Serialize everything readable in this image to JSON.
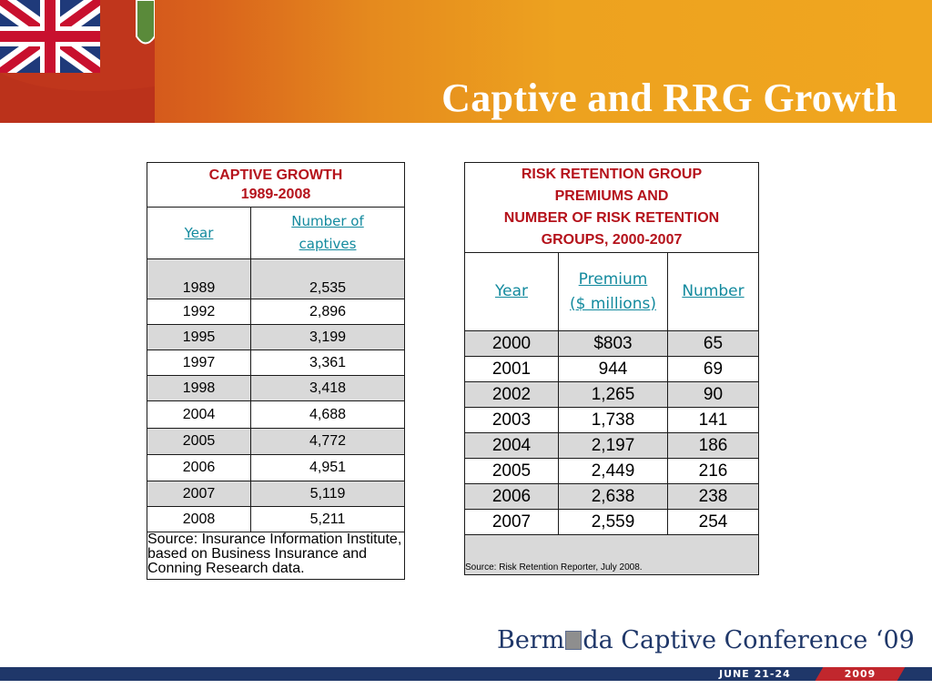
{
  "slide": {
    "title": "Captive and RRG Growth"
  },
  "captive_table": {
    "heading_line1": "CAPTIVE GROWTH",
    "heading_line2": "1989-2008",
    "col_year": "Year",
    "col_number_line1": "Number of",
    "col_number_line2": "captives",
    "rows": [
      {
        "year": "1989",
        "count": "2,535"
      },
      {
        "year": "1992",
        "count": "2,896"
      },
      {
        "year": "1995",
        "count": "3,199"
      },
      {
        "year": "1997",
        "count": "3,361"
      },
      {
        "year": "1998",
        "count": "3,418"
      },
      {
        "year": "2004",
        "count": "4,688"
      },
      {
        "year": "2005",
        "count": "4,772"
      },
      {
        "year": "2006",
        "count": "4,951"
      },
      {
        "year": "2007",
        "count": "5,119"
      },
      {
        "year": "2008",
        "count": "5,211"
      }
    ],
    "source": "Source: Insurance Information Institute, based on Business Insurance and Conning Research data."
  },
  "rrg_table": {
    "heading_line1": "RISK RETENTION GROUP",
    "heading_line2": "PREMIUMS AND",
    "heading_line3": "NUMBER OF RISK RETENTION",
    "heading_line4": "GROUPS, 2000-2007",
    "col_year": "Year",
    "col_premium_line1": "Premium",
    "col_premium_line2": "($ millions)",
    "col_number": "Number",
    "rows": [
      {
        "year": "2000",
        "premium": "$803",
        "number": "65"
      },
      {
        "year": "2001",
        "premium": "944",
        "number": "69"
      },
      {
        "year": "2002",
        "premium": "1,265",
        "number": "90"
      },
      {
        "year": "2003",
        "premium": "1,738",
        "number": "141"
      },
      {
        "year": "2004",
        "premium": "2,197",
        "number": "186"
      },
      {
        "year": "2005",
        "premium": "2,449",
        "number": "216"
      },
      {
        "year": "2006",
        "premium": "2,638",
        "number": "238"
      },
      {
        "year": "2007",
        "premium": "2,559",
        "number": "254"
      }
    ],
    "source": "Source: Risk Retention Reporter, July 2008."
  },
  "footer": {
    "logo_before": "Berm",
    "logo_after": "da Captive Conference ‘09",
    "dates": "JUNE 21-24",
    "year": "2009"
  },
  "colors": {
    "accent_red": "#b5121b",
    "header_orange": "#eda21f",
    "link_teal": "#138a9e",
    "footer_navy": "#1f3769",
    "row_shade": "#d9d9d9"
  }
}
